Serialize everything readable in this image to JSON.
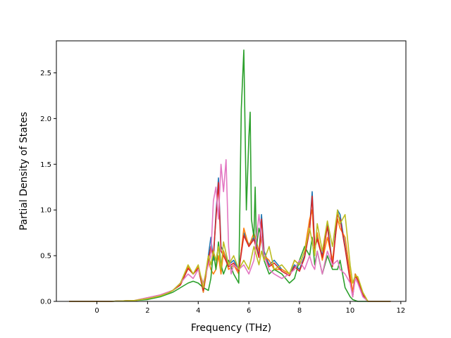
{
  "chart_data": {
    "type": "line",
    "title": "",
    "xlabel": "Frequency (THz)",
    "ylabel": "Partial Density of States",
    "xlim": [
      -1.6,
      12.2
    ],
    "ylim": [
      0,
      2.85
    ],
    "xticks": [
      0,
      2,
      4,
      6,
      8,
      10,
      12
    ],
    "xtick_labels": [
      "0",
      "2",
      "4",
      "6",
      "8",
      "10",
      "12"
    ],
    "yticks": [
      0,
      0.5,
      1.0,
      1.5,
      2.0,
      2.5
    ],
    "ytick_labels": [
      "0.0",
      "0.5",
      "1.0",
      "1.5",
      "2.0",
      "2.5"
    ],
    "grid": false,
    "legend": "none",
    "series": [
      {
        "color": "#1f77b4",
        "x": [
          -1.1,
          0.5,
          1.5,
          2.0,
          2.5,
          2.8,
          3.0,
          3.3,
          3.6,
          3.8,
          4.0,
          4.2,
          4.4,
          4.5,
          4.6,
          4.7,
          4.8,
          4.9,
          5.0,
          5.2,
          5.4,
          5.6,
          5.8,
          6.0,
          6.2,
          6.4,
          6.5,
          6.6,
          6.8,
          7.0,
          7.3,
          7.6,
          7.8,
          8.0,
          8.2,
          8.4,
          8.5,
          8.6,
          8.7,
          8.9,
          9.1,
          9.3,
          9.5,
          9.6,
          9.8,
          10.0,
          10.1,
          10.2,
          10.3,
          10.5,
          10.7,
          11.6
        ],
        "y": [
          0,
          0.0,
          0.01,
          0.03,
          0.06,
          0.09,
          0.12,
          0.2,
          0.38,
          0.3,
          0.38,
          0.1,
          0.5,
          0.7,
          0.45,
          0.95,
          1.35,
          0.6,
          0.55,
          0.4,
          0.45,
          0.35,
          0.75,
          0.62,
          0.7,
          0.5,
          0.95,
          0.55,
          0.4,
          0.45,
          0.35,
          0.3,
          0.4,
          0.35,
          0.5,
          0.8,
          1.2,
          0.6,
          0.7,
          0.5,
          0.85,
          0.4,
          1.0,
          0.95,
          0.6,
          0.25,
          0.05,
          0.3,
          0.25,
          0.08,
          0.0,
          0
        ]
      },
      {
        "color": "#ff7f0e",
        "x": [
          -1.1,
          0.5,
          1.5,
          2.0,
          2.5,
          2.8,
          3.0,
          3.3,
          3.6,
          3.8,
          4.0,
          4.2,
          4.4,
          4.5,
          4.6,
          4.7,
          4.8,
          4.9,
          5.0,
          5.2,
          5.4,
          5.6,
          5.8,
          6.0,
          6.2,
          6.4,
          6.5,
          6.6,
          6.8,
          7.0,
          7.3,
          7.6,
          7.8,
          8.0,
          8.2,
          8.4,
          8.5,
          8.6,
          8.7,
          8.9,
          9.1,
          9.3,
          9.5,
          9.6,
          9.8,
          10.0,
          10.1,
          10.2,
          10.3,
          10.5,
          10.7,
          11.6
        ],
        "y": [
          0,
          0.0,
          0.01,
          0.03,
          0.06,
          0.09,
          0.12,
          0.2,
          0.38,
          0.3,
          0.38,
          0.1,
          0.45,
          0.35,
          0.3,
          0.35,
          0.5,
          0.3,
          0.55,
          0.35,
          0.4,
          0.3,
          0.8,
          0.6,
          0.75,
          0.55,
          0.7,
          0.5,
          0.45,
          0.35,
          0.35,
          0.3,
          0.45,
          0.4,
          0.55,
          0.9,
          1.0,
          0.55,
          0.75,
          0.45,
          0.7,
          0.45,
          0.9,
          0.8,
          0.7,
          0.3,
          0.1,
          0.3,
          0.25,
          0.08,
          0.0,
          0
        ]
      },
      {
        "color": "#2ca02c",
        "x": [
          -1.1,
          0.5,
          1.5,
          2.0,
          2.5,
          2.8,
          3.0,
          3.3,
          3.6,
          3.8,
          4.0,
          4.2,
          4.4,
          4.5,
          4.6,
          4.7,
          4.8,
          4.9,
          5.0,
          5.2,
          5.4,
          5.6,
          5.7,
          5.8,
          5.9,
          6.0,
          6.05,
          6.1,
          6.2,
          6.25,
          6.3,
          6.4,
          6.5,
          6.6,
          6.8,
          7.0,
          7.3,
          7.6,
          7.8,
          8.0,
          8.2,
          8.4,
          8.5,
          8.6,
          8.7,
          8.9,
          9.1,
          9.3,
          9.5,
          9.6,
          9.8,
          10.0,
          10.1,
          10.2,
          10.3,
          10.5,
          10.7,
          11.6
        ],
        "y": [
          0,
          0.0,
          0.01,
          0.02,
          0.05,
          0.08,
          0.1,
          0.15,
          0.2,
          0.22,
          0.2,
          0.15,
          0.12,
          0.25,
          0.55,
          0.35,
          0.65,
          0.4,
          0.3,
          0.45,
          0.3,
          0.2,
          2.1,
          2.75,
          1.0,
          1.8,
          2.07,
          0.9,
          0.7,
          1.25,
          0.6,
          0.8,
          0.7,
          0.45,
          0.3,
          0.35,
          0.3,
          0.2,
          0.25,
          0.45,
          0.6,
          0.5,
          0.7,
          0.4,
          0.55,
          0.3,
          0.5,
          0.35,
          0.35,
          0.45,
          0.15,
          0.05,
          0.02,
          0.01,
          0.0,
          0.0,
          0.0,
          0
        ]
      },
      {
        "color": "#d62728",
        "x": [
          -1.1,
          0.5,
          1.5,
          2.0,
          2.5,
          2.8,
          3.0,
          3.3,
          3.6,
          3.8,
          4.0,
          4.2,
          4.4,
          4.5,
          4.6,
          4.7,
          4.8,
          4.9,
          5.0,
          5.2,
          5.4,
          5.6,
          5.8,
          6.0,
          6.2,
          6.4,
          6.5,
          6.6,
          6.8,
          7.0,
          7.3,
          7.6,
          7.8,
          8.0,
          8.2,
          8.4,
          8.5,
          8.6,
          8.7,
          8.9,
          9.1,
          9.3,
          9.5,
          9.6,
          9.8,
          10.0,
          10.1,
          10.2,
          10.3,
          10.5,
          10.7,
          11.6
        ],
        "y": [
          0,
          0.0,
          0.01,
          0.04,
          0.07,
          0.1,
          0.12,
          0.18,
          0.36,
          0.3,
          0.36,
          0.12,
          0.45,
          0.6,
          0.5,
          0.9,
          1.3,
          0.55,
          0.5,
          0.38,
          0.42,
          0.33,
          0.72,
          0.6,
          0.68,
          0.48,
          0.9,
          0.5,
          0.38,
          0.42,
          0.33,
          0.28,
          0.38,
          0.33,
          0.48,
          0.78,
          1.15,
          0.58,
          0.68,
          0.48,
          0.82,
          0.38,
          0.95,
          0.9,
          0.58,
          0.22,
          0.05,
          0.28,
          0.23,
          0.07,
          0.0,
          0
        ]
      },
      {
        "color": "#e377c2",
        "x": [
          -1.1,
          0.5,
          1.5,
          2.0,
          2.5,
          2.8,
          3.0,
          3.3,
          3.6,
          3.8,
          4.0,
          4.2,
          4.4,
          4.5,
          4.6,
          4.7,
          4.8,
          4.9,
          5.0,
          5.1,
          5.2,
          5.3,
          5.4,
          5.6,
          5.8,
          6.0,
          6.2,
          6.4,
          6.5,
          6.6,
          6.8,
          7.0,
          7.3,
          7.6,
          7.8,
          8.0,
          8.2,
          8.4,
          8.5,
          8.6,
          8.7,
          8.9,
          9.1,
          9.3,
          9.5,
          9.6,
          9.8,
          10.0,
          10.1,
          10.2,
          10.3,
          10.5,
          10.7,
          11.6
        ],
        "y": [
          0,
          0.0,
          0.01,
          0.04,
          0.07,
          0.1,
          0.12,
          0.2,
          0.3,
          0.25,
          0.35,
          0.2,
          0.4,
          0.5,
          1.1,
          1.25,
          0.9,
          1.5,
          1.2,
          1.55,
          0.6,
          0.3,
          0.4,
          0.35,
          0.4,
          0.3,
          0.45,
          0.95,
          0.7,
          0.5,
          0.35,
          0.3,
          0.25,
          0.3,
          0.35,
          0.45,
          0.35,
          0.5,
          0.4,
          0.35,
          0.55,
          0.3,
          0.55,
          0.4,
          0.45,
          0.35,
          0.3,
          0.2,
          0.05,
          0.25,
          0.2,
          0.05,
          0.0,
          0
        ]
      },
      {
        "color": "#bcbd22",
        "x": [
          -1.1,
          0.5,
          1.5,
          2.0,
          2.5,
          2.8,
          3.0,
          3.3,
          3.6,
          3.8,
          4.0,
          4.2,
          4.4,
          4.5,
          4.6,
          4.7,
          4.8,
          4.9,
          5.0,
          5.2,
          5.4,
          5.6,
          5.8,
          6.0,
          6.2,
          6.4,
          6.5,
          6.6,
          6.8,
          7.0,
          7.3,
          7.6,
          7.8,
          8.0,
          8.2,
          8.4,
          8.5,
          8.6,
          8.7,
          8.9,
          9.1,
          9.3,
          9.5,
          9.6,
          9.8,
          10.0,
          10.1,
          10.2,
          10.3,
          10.5,
          10.7,
          11.6
        ],
        "y": [
          0,
          0.0,
          0.01,
          0.03,
          0.06,
          0.09,
          0.12,
          0.2,
          0.4,
          0.3,
          0.4,
          0.15,
          0.5,
          0.4,
          0.55,
          0.45,
          0.6,
          0.35,
          0.65,
          0.4,
          0.5,
          0.35,
          0.45,
          0.35,
          0.6,
          0.4,
          0.55,
          0.45,
          0.6,
          0.35,
          0.4,
          0.3,
          0.45,
          0.4,
          0.55,
          0.8,
          0.65,
          0.5,
          0.85,
          0.55,
          0.88,
          0.6,
          1.0,
          0.85,
          0.95,
          0.4,
          0.2,
          0.28,
          0.27,
          0.1,
          0.0,
          0
        ]
      }
    ]
  }
}
